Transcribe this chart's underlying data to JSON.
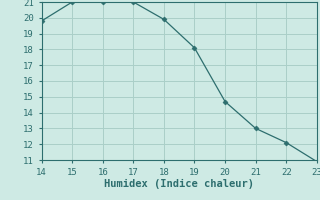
{
  "x": [
    14,
    15,
    16,
    17,
    18,
    19,
    20,
    21,
    22,
    23
  ],
  "y": [
    19.8,
    21.0,
    21.0,
    21.0,
    19.9,
    18.1,
    14.7,
    13.0,
    12.1,
    10.9
  ],
  "xlim": [
    14,
    23
  ],
  "ylim": [
    11,
    21
  ],
  "xticks": [
    14,
    15,
    16,
    17,
    18,
    19,
    20,
    21,
    22,
    23
  ],
  "yticks": [
    11,
    12,
    13,
    14,
    15,
    16,
    17,
    18,
    19,
    20,
    21
  ],
  "xlabel": "Humidex (Indice chaleur)",
  "line_color": "#2d6e6e",
  "marker": "D",
  "marker_size": 2.5,
  "bg_color": "#ceeae4",
  "grid_color": "#aacfc8",
  "tick_label_fontsize": 6.5,
  "xlabel_fontsize": 7.5
}
